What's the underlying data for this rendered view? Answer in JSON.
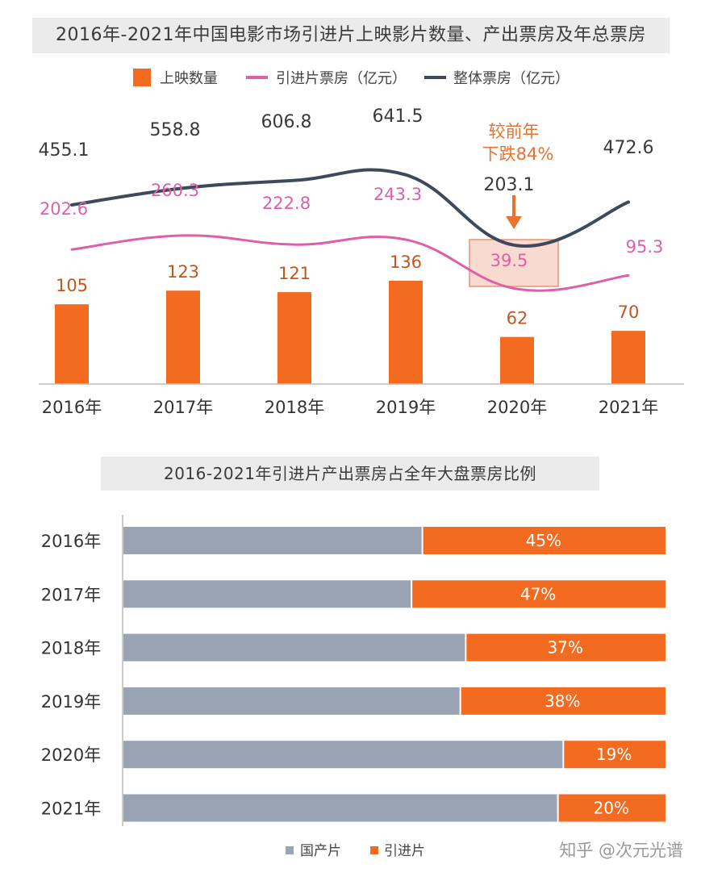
{
  "chart_data": [
    {
      "type": "bar+line",
      "title": "2016年-2021年中国电影市场引进片上映影片数量、产出票房及年总票房",
      "categories": [
        "2016年",
        "2017年",
        "2018年",
        "2019年",
        "2020年",
        "2021年"
      ],
      "series": [
        {
          "name": "上映数量",
          "kind": "bar",
          "values": [
            105,
            123,
            121,
            136,
            62,
            70
          ],
          "labels": [
            "105",
            "123",
            "121",
            "136",
            "62",
            "70"
          ],
          "color": "#f26b21"
        },
        {
          "name": "引进片票房（亿元）",
          "kind": "line",
          "values": [
            202.6,
            260.3,
            222.8,
            243.3,
            39.5,
            95.3
          ],
          "labels": [
            "202.6",
            "260.3",
            "222.8",
            "243.3",
            "39.5",
            "95.3"
          ],
          "color": "#de5fa8"
        },
        {
          "name": "整体票房（亿元）",
          "kind": "line",
          "values": [
            455.1,
            558.8,
            606.8,
            641.5,
            203.1,
            472.6
          ],
          "labels": [
            "455.1",
            "558.8",
            "606.8",
            "641.5",
            "203.1",
            "472.6"
          ],
          "color": "#3e4a5c"
        }
      ],
      "annotation": {
        "line1": "较前年",
        "line2": "下跌84%",
        "category": "2020年",
        "color": "#e8732e"
      },
      "legend": "top"
    },
    {
      "type": "stacked-bar-horizontal",
      "title": "2016-2021年引进片产出票房占全年大盘票房比例",
      "categories": [
        "2016年",
        "2017年",
        "2018年",
        "2019年",
        "2020年",
        "2021年"
      ],
      "series": [
        {
          "name": "国产片",
          "values": [
            55,
            53,
            63,
            62,
            81,
            80
          ],
          "color": "#9aa3b3"
        },
        {
          "name": "引进片",
          "values": [
            45,
            47,
            37,
            38,
            19,
            20
          ],
          "labels": [
            "45%",
            "47%",
            "37%",
            "38%",
            "19%",
            "20%"
          ],
          "color": "#f26b21"
        }
      ],
      "xlim": [
        0,
        100
      ],
      "legend": "bottom"
    }
  ],
  "watermark": "知乎 @次元光谱"
}
